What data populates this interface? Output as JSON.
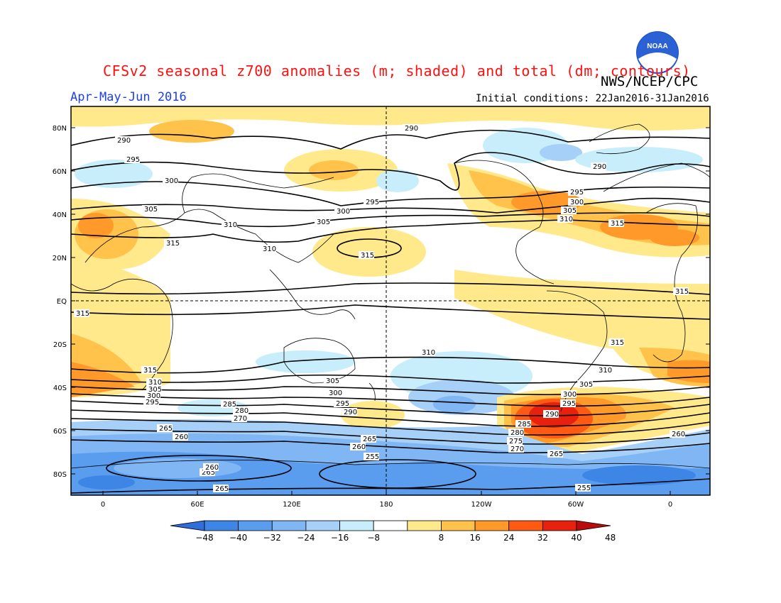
{
  "header": {
    "title": "CFSv2 seasonal z700 anomalies (m; shaded) and total (dm; contours)",
    "agency": "NWS/NCEP/CPC",
    "season": "Apr-May-Jun 2016",
    "initial_conditions": "Initial conditions: 22Jan2016-31Jan2016",
    "logo_text": "NOAA"
  },
  "map": {
    "lat_labels": [
      "80N",
      "60N",
      "40N",
      "20N",
      "EQ",
      "20S",
      "40S",
      "60S",
      "80S"
    ],
    "lon_labels": [
      "0",
      "60E",
      "120E",
      "180",
      "120W",
      "60W",
      "0"
    ],
    "contour_labels": [
      "290",
      "295",
      "300",
      "305",
      "310",
      "315",
      "285",
      "280",
      "275",
      "270",
      "265",
      "260",
      "255"
    ]
  },
  "colorbar": {
    "ticks": [
      "-48",
      "-40",
      "-32",
      "-24",
      "-16",
      "-8",
      "8",
      "16",
      "24",
      "32",
      "40",
      "48"
    ],
    "colors": [
      "#2f6fdc",
      "#3e86e6",
      "#5a9cee",
      "#80b6f4",
      "#a6d0f8",
      "#c7eefa",
      "#ffffff",
      "#ffe98a",
      "#ffc24a",
      "#ff9a2a",
      "#ff5a14",
      "#e8200e",
      "#b80c0c"
    ]
  }
}
